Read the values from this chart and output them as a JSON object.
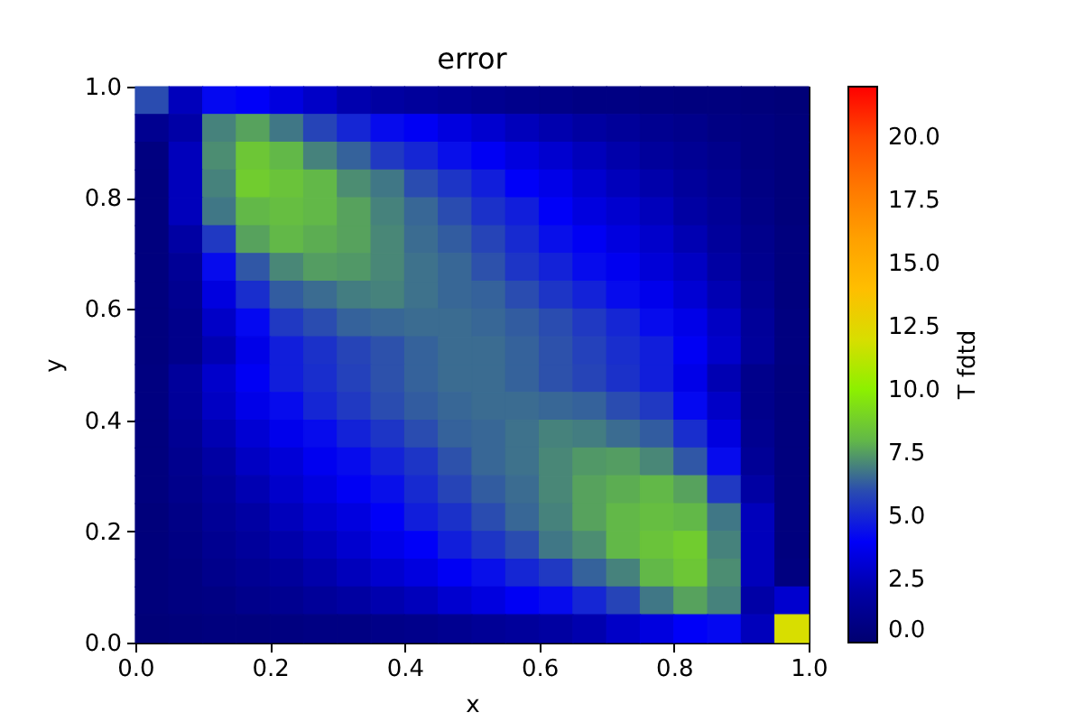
{
  "chart_data": {
    "type": "heatmap",
    "title": "error",
    "xlabel": "x",
    "ylabel": "y",
    "clabel": "T fdtd",
    "x": [
      0.025,
      0.075,
      0.125,
      0.175,
      0.225,
      0.275,
      0.325,
      0.375,
      0.425,
      0.475,
      0.525,
      0.575,
      0.625,
      0.675,
      0.725,
      0.775,
      0.825,
      0.875,
      0.925,
      0.975
    ],
    "xlim": [
      0,
      1
    ],
    "xticks": [
      {
        "value": 0,
        "label": "0.0"
      },
      0.2,
      0.4,
      0.6,
      0.8,
      {
        "value": 1,
        "label": "1.0"
      }
    ],
    "ylim": [
      0,
      1
    ],
    "yticks": [
      {
        "value": 0,
        "label": "0.0"
      },
      0.2,
      0.4,
      0.6,
      0.8,
      {
        "value": 1,
        "label": "1.0"
      }
    ],
    "clim": [
      0,
      22
    ],
    "cticks": [
      {
        "value": 0,
        "label": "0.0"
      },
      2.5,
      {
        "value": 5,
        "label": "5.0"
      },
      7.5,
      {
        "value": 10,
        "label": "10.0"
      },
      12.5,
      {
        "value": 15,
        "label": "15.0"
      },
      17.5,
      {
        "value": 20,
        "label": "20.0"
      }
    ],
    "cells": [
      [
        6.0,
        2.5,
        4.2,
        4.0,
        3.4,
        2.8,
        2.2,
        1.8,
        1.6,
        1.4,
        1.2,
        1.0,
        0.9,
        0.7,
        0.7,
        0.6,
        0.5,
        0.5,
        0.4,
        0.3
      ],
      [
        1.2,
        2.0,
        7.0,
        7.6,
        6.8,
        5.8,
        5.0,
        4.3,
        3.9,
        3.4,
        3.0,
        2.5,
        2.2,
        1.8,
        1.5,
        1.2,
        1.0,
        0.7,
        0.6,
        0.4
      ],
      [
        0.6,
        2.5,
        7.2,
        8.5,
        8.0,
        7.0,
        6.4,
        5.5,
        5.0,
        4.4,
        3.9,
        3.4,
        3.0,
        2.5,
        2.1,
        1.6,
        1.3,
        1.0,
        0.6,
        0.4
      ],
      [
        0.5,
        2.5,
        7.0,
        8.7,
        8.4,
        8.0,
        7.2,
        6.8,
        6.0,
        5.4,
        4.8,
        4.0,
        3.6,
        3.0,
        2.5,
        2.1,
        1.6,
        1.2,
        0.7,
        0.4
      ],
      [
        0.5,
        2.5,
        6.8,
        8.0,
        8.2,
        8.0,
        7.6,
        7.0,
        6.5,
        6.0,
        5.3,
        4.8,
        4.0,
        3.4,
        3.0,
        2.5,
        1.9,
        1.4,
        0.8,
        0.4
      ],
      [
        0.5,
        1.9,
        5.5,
        7.6,
        8.0,
        7.8,
        7.6,
        7.1,
        6.6,
        6.3,
        5.8,
        5.1,
        4.4,
        3.9,
        3.4,
        2.9,
        2.3,
        1.6,
        1.0,
        0.5
      ],
      [
        0.5,
        1.4,
        4.3,
        6.2,
        7.1,
        7.5,
        7.4,
        7.1,
        6.7,
        6.5,
        6.1,
        5.4,
        4.9,
        4.3,
        3.8,
        3.2,
        2.7,
        1.9,
        1.1,
        0.5
      ],
      [
        0.5,
        1.2,
        3.4,
        5.2,
        6.3,
        6.6,
        6.9,
        7.0,
        6.7,
        6.5,
        6.4,
        6.0,
        5.4,
        4.9,
        4.3,
        3.7,
        3.1,
        2.3,
        1.3,
        0.5
      ],
      [
        0.5,
        1.0,
        2.8,
        4.2,
        5.5,
        6.0,
        6.4,
        6.5,
        6.6,
        6.6,
        6.5,
        6.3,
        6.0,
        5.5,
        5.0,
        4.3,
        3.6,
        2.7,
        1.5,
        0.6
      ],
      [
        0.5,
        1.0,
        2.3,
        3.6,
        4.8,
        5.3,
        5.8,
        6.1,
        6.4,
        6.6,
        6.6,
        6.4,
        6.1,
        5.7,
        5.2,
        4.8,
        3.9,
        2.9,
        1.6,
        0.6
      ],
      [
        0.6,
        1.6,
        2.9,
        3.9,
        4.8,
        5.2,
        5.7,
        6.1,
        6.4,
        6.6,
        6.6,
        6.4,
        6.1,
        5.8,
        5.3,
        4.8,
        3.6,
        2.3,
        1.0,
        0.5
      ],
      [
        0.6,
        1.5,
        2.7,
        3.6,
        4.3,
        5.0,
        5.5,
        6.0,
        6.3,
        6.5,
        6.6,
        6.6,
        6.5,
        6.4,
        6.0,
        5.5,
        4.2,
        2.8,
        1.0,
        0.5
      ],
      [
        0.5,
        1.3,
        2.3,
        3.1,
        3.7,
        4.3,
        4.9,
        5.4,
        6.0,
        6.4,
        6.5,
        6.7,
        7.0,
        6.9,
        6.6,
        6.3,
        5.2,
        3.4,
        1.2,
        0.5
      ],
      [
        0.5,
        1.1,
        1.9,
        2.7,
        3.2,
        3.8,
        4.3,
        4.9,
        5.4,
        6.1,
        6.5,
        6.7,
        7.1,
        7.4,
        7.5,
        7.1,
        6.2,
        4.3,
        1.4,
        0.5
      ],
      [
        0.5,
        1.0,
        1.6,
        2.3,
        2.9,
        3.4,
        3.9,
        4.4,
        5.1,
        5.8,
        6.3,
        6.6,
        7.1,
        7.6,
        7.8,
        8.0,
        7.6,
        5.5,
        1.9,
        0.5
      ],
      [
        0.4,
        0.8,
        1.4,
        1.9,
        2.5,
        3.0,
        3.4,
        4.0,
        4.8,
        5.3,
        6.0,
        6.5,
        7.0,
        7.6,
        8.0,
        8.2,
        8.0,
        6.8,
        2.5,
        0.5
      ],
      [
        0.4,
        0.7,
        1.2,
        1.6,
        2.1,
        2.5,
        3.0,
        3.6,
        4.0,
        4.8,
        5.4,
        6.0,
        6.8,
        7.2,
        8.0,
        8.4,
        8.7,
        7.0,
        2.5,
        0.5
      ],
      [
        0.4,
        0.6,
        1.0,
        1.3,
        1.6,
        2.1,
        2.5,
        3.0,
        3.4,
        3.9,
        4.4,
        5.0,
        5.5,
        6.4,
        7.0,
        8.0,
        8.5,
        7.2,
        2.5,
        0.6
      ],
      [
        0.4,
        0.6,
        0.7,
        1.0,
        1.2,
        1.5,
        1.8,
        2.2,
        2.5,
        3.0,
        3.4,
        3.9,
        4.3,
        5.0,
        5.8,
        6.8,
        7.6,
        7.0,
        2.0,
        3.0
      ],
      [
        0.3,
        0.4,
        0.5,
        0.5,
        0.6,
        0.7,
        0.7,
        0.9,
        1.0,
        1.2,
        1.4,
        1.6,
        1.8,
        2.2,
        2.8,
        3.4,
        4.0,
        4.2,
        2.5,
        12.0
      ]
    ]
  }
}
